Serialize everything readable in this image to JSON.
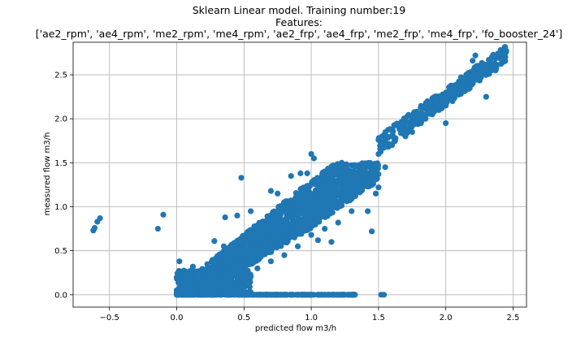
{
  "chart_data": {
    "type": "scatter",
    "title": "Sklearn Linear model. Training number:19",
    "subtitle": "Features:",
    "features_line": "['ae2_rpm', 'ae4_rpm', 'me2_rpm', 'me4_rpm', 'ae2_frp', 'ae4_frp', 'me2_frp', 'me4_frp', 'fo_booster_24']",
    "xlabel": "predicted flow m3/h",
    "ylabel": "measured flow m3/h",
    "xlim": [
      -0.77,
      2.6
    ],
    "ylim": [
      -0.14,
      2.87
    ],
    "xticks": [
      -0.5,
      0.0,
      0.5,
      1.0,
      1.5,
      2.0,
      2.5
    ],
    "xtick_labels": [
      "−0.5",
      "0.0",
      "0.5",
      "1.0",
      "1.5",
      "2.0",
      "2.5"
    ],
    "yticks": [
      0.0,
      0.5,
      1.0,
      1.5,
      2.0,
      2.5
    ],
    "ytick_labels": [
      "0.0",
      "0.5",
      "1.0",
      "1.5",
      "2.0",
      "2.5"
    ],
    "grid": true,
    "marker_color": "#1f77b4",
    "series": [
      {
        "points": [
          [
            -0.62,
            0.73
          ],
          [
            -0.61,
            0.76
          ],
          [
            -0.59,
            0.83
          ],
          [
            -0.57,
            0.87
          ],
          [
            -0.1,
            0.91
          ],
          [
            -0.14,
            0.75
          ],
          [
            0.0,
            0.0
          ],
          [
            0.05,
            0.0
          ],
          [
            0.1,
            0.0
          ],
          [
            0.2,
            0.0
          ],
          [
            0.3,
            0.0
          ],
          [
            0.4,
            0.0
          ],
          [
            0.5,
            0.0
          ],
          [
            0.6,
            0.0
          ],
          [
            0.7,
            0.0
          ],
          [
            0.8,
            0.0
          ],
          [
            0.9,
            0.0
          ],
          [
            1.0,
            0.0
          ],
          [
            1.1,
            0.0
          ],
          [
            1.2,
            0.0
          ],
          [
            1.3,
            0.0
          ],
          [
            1.32,
            0.0
          ],
          [
            1.52,
            0.0
          ],
          [
            1.54,
            0.0
          ],
          [
            0.0,
            0.05
          ],
          [
            0.05,
            0.1
          ],
          [
            0.1,
            0.05
          ],
          [
            0.15,
            0.15
          ],
          [
            0.2,
            0.1
          ],
          [
            0.02,
            0.38
          ],
          [
            0.03,
            0.26
          ],
          [
            0.12,
            0.32
          ],
          [
            0.28,
            0.61
          ],
          [
            0.35,
            0.55
          ],
          [
            0.48,
            1.33
          ],
          [
            0.36,
            0.88
          ],
          [
            0.4,
            0.5
          ],
          [
            0.45,
            0.6
          ],
          [
            0.5,
            0.55
          ],
          [
            0.55,
            0.7
          ],
          [
            0.6,
            0.62
          ],
          [
            0.65,
            0.8
          ],
          [
            0.7,
            0.72
          ],
          [
            0.75,
            0.9
          ],
          [
            0.8,
            0.85
          ],
          [
            0.85,
            1.0
          ],
          [
            0.9,
            1.05
          ],
          [
            0.95,
            1.1
          ],
          [
            1.0,
            1.15
          ],
          [
            1.05,
            1.2
          ],
          [
            1.1,
            1.3
          ],
          [
            1.15,
            1.35
          ],
          [
            1.2,
            1.3
          ],
          [
            1.25,
            1.4
          ],
          [
            1.3,
            1.35
          ],
          [
            1.35,
            1.38
          ],
          [
            1.4,
            1.4
          ],
          [
            1.45,
            1.38
          ],
          [
            1.0,
            1.6
          ],
          [
            1.02,
            1.55
          ],
          [
            1.5,
            1.6
          ],
          [
            1.6,
            1.7
          ],
          [
            1.55,
            1.45
          ],
          [
            1.5,
            1.22
          ],
          [
            1.48,
            1.15
          ],
          [
            1.3,
            0.95
          ],
          [
            1.2,
            0.82
          ],
          [
            1.1,
            0.75
          ],
          [
            1.05,
            0.62
          ],
          [
            1.15,
            0.6
          ],
          [
            1.0,
            0.68
          ],
          [
            0.9,
            0.55
          ],
          [
            0.8,
            0.45
          ],
          [
            0.7,
            0.38
          ],
          [
            0.6,
            0.3
          ],
          [
            0.5,
            0.28
          ],
          [
            0.4,
            0.15
          ],
          [
            0.3,
            0.1
          ],
          [
            0.45,
            0.9
          ],
          [
            0.55,
            0.95
          ],
          [
            0.7,
            1.18
          ],
          [
            0.75,
            1.15
          ],
          [
            0.85,
            1.35
          ],
          [
            0.92,
            1.38
          ],
          [
            0.97,
            1.38
          ],
          [
            1.42,
            0.95
          ],
          [
            1.45,
            0.72
          ],
          [
            1.7,
            1.8
          ],
          [
            1.75,
            1.85
          ],
          [
            1.8,
            1.95
          ],
          [
            1.85,
            2.0
          ],
          [
            1.9,
            2.05
          ],
          [
            1.95,
            2.1
          ],
          [
            2.0,
            2.15
          ],
          [
            2.05,
            2.2
          ],
          [
            2.1,
            2.3
          ],
          [
            2.15,
            2.35
          ],
          [
            2.2,
            2.4
          ],
          [
            2.25,
            2.5
          ],
          [
            2.3,
            2.55
          ],
          [
            2.35,
            2.6
          ],
          [
            2.4,
            2.7
          ],
          [
            2.42,
            2.75
          ],
          [
            2.45,
            2.77
          ],
          [
            2.2,
            2.66
          ],
          [
            2.22,
            2.72
          ],
          [
            2.32,
            2.67
          ],
          [
            2.37,
            2.55
          ],
          [
            1.95,
            2.2
          ],
          [
            2.0,
            1.95
          ],
          [
            2.2,
            2.45
          ],
          [
            2.3,
            2.25
          ]
        ]
      }
    ]
  }
}
